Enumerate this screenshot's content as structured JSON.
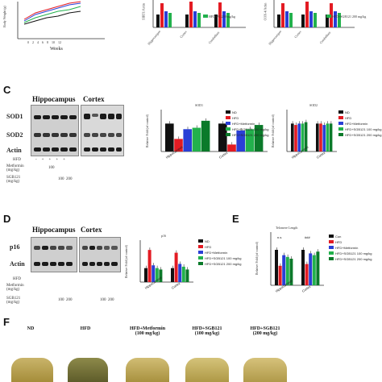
{
  "panel_letters": {
    "c": "C",
    "d": "D",
    "e": "E",
    "f": "F"
  },
  "top": {
    "weeks_label": "Weeks",
    "weeks_ticks": [
      "0",
      "2",
      "4",
      "6",
      "8",
      "10",
      "12"
    ],
    "yaxis_a": "Body Weight (g)",
    "yaxis_b": "SIRT1/Actin",
    "yaxis_c": "COX-4/Actin",
    "regions": [
      "Hippocampus",
      "Cortex",
      "Cerebellum"
    ],
    "legend_b": [
      "HFD+PL 200 mg/kg"
    ],
    "legend_c": [
      "HFD+SGB121 200 mg/kg"
    ]
  },
  "c": {
    "blot_headers": [
      "Hippocampus",
      "Cortex"
    ],
    "proteins": [
      "SOD1",
      "SOD2",
      "Actin"
    ],
    "row_labels": [
      "HFD",
      "Metformin\n(mg/kg)",
      "SGB121\n(mg/kg)"
    ],
    "hfd_vals": [
      "-",
      "+",
      "+",
      "+",
      "+"
    ],
    "metformin_vals": [
      "100"
    ],
    "sgb_vals": [
      "100",
      "200"
    ],
    "chart1_title": "SOD1",
    "chart2_title": "SOD2",
    "ylabel": "Relative Fold (of control)",
    "legend": [
      "ND",
      "HFD",
      "HFD+Metformin",
      "HFD+SGB121 100 mg/kg",
      "HFD+SGB121 200 mg/kg"
    ]
  },
  "d": {
    "blot_headers": [
      "Hippocampus",
      "Cortex"
    ],
    "proteins": [
      "p16",
      "Actin"
    ],
    "row_labels": [
      "HFD",
      "Metformin\n(mg/kg)",
      "SGB121\n(mg/kg)"
    ],
    "sgb_vals": [
      "100",
      "200",
      "100",
      "200"
    ],
    "chart_title": "p16",
    "ylabel": "Relative Fold (of control)",
    "legend": [
      "ND",
      "HFD",
      "HFD+Metformin",
      "HFD+SGB121 100 mg/kg",
      "HFD+SGB121 200 mg/kg"
    ]
  },
  "e": {
    "chart_title": "Telomere Length",
    "ylabel": "Relative Fold (of control)",
    "legend": [
      "Con",
      "HFD",
      "HFD+Metformin",
      "HFD+SGB121 100 mg/kg",
      "HFD+SGB121 200 mg/kg"
    ],
    "sig": [
      "n.s",
      "###"
    ]
  },
  "f": {
    "groups": [
      "ND",
      "HFD",
      "HFD+Metformin\n(100 mg/kg)",
      "HFD+SGB121\n(100 mg/kg)",
      "HFD+SGB121\n(200 mg/kg)"
    ]
  },
  "colors": {
    "nd": "#111111",
    "hfd": "#e31b23",
    "metformin": "#2a3fd6",
    "sgb100": "#22b14c",
    "sgb200": "#0b7a2a"
  },
  "chart_data": [
    {
      "type": "bar",
      "title": "SOD1",
      "categories": [
        "Hippocampus",
        "Cortex"
      ],
      "series": [
        {
          "name": "ND",
          "values": [
            1.0,
            1.0
          ]
        },
        {
          "name": "HFD",
          "values": [
            0.45,
            0.25
          ]
        },
        {
          "name": "HFD+Metformin",
          "values": [
            0.8,
            0.75
          ]
        },
        {
          "name": "HFD+SGB121 100 mg/kg",
          "values": [
            0.85,
            0.8
          ]
        },
        {
          "name": "HFD+SGB121 200 mg/kg",
          "values": [
            1.1,
            0.95
          ]
        }
      ],
      "ylim": [
        0,
        1.5
      ]
    },
    {
      "type": "bar",
      "title": "SOD2",
      "categories": [
        "Hippocampus",
        "Cortex"
      ],
      "series": [
        {
          "name": "ND",
          "values": [
            1.0,
            1.0
          ]
        },
        {
          "name": "HFD",
          "values": [
            0.95,
            1.0
          ]
        },
        {
          "name": "HFD+Metformin",
          "values": [
            1.0,
            0.95
          ]
        },
        {
          "name": "HFD+SGB121 100 mg/kg",
          "values": [
            1.0,
            1.0
          ]
        },
        {
          "name": "HFD+SGB121 200 mg/kg",
          "values": [
            1.05,
            1.0
          ]
        }
      ],
      "ylim": [
        0,
        1.5
      ]
    },
    {
      "type": "bar",
      "title": "p16",
      "categories": [
        "Hippocampus",
        "Cortex"
      ],
      "series": [
        {
          "name": "ND",
          "values": [
            1.0,
            1.0
          ]
        },
        {
          "name": "HFD",
          "values": [
            2.3,
            2.1
          ]
        },
        {
          "name": "HFD+Metformin",
          "values": [
            1.2,
            1.3
          ]
        },
        {
          "name": "HFD+SGB121 100 mg/kg",
          "values": [
            1.0,
            1.1
          ]
        },
        {
          "name": "HFD+SGB121 200 mg/kg",
          "values": [
            0.9,
            0.9
          ]
        }
      ],
      "ylim": [
        0,
        3
      ]
    },
    {
      "type": "bar",
      "title": "Telomere Length",
      "categories": [
        "Hippocampus",
        "Cortex"
      ],
      "series": [
        {
          "name": "Con",
          "values": [
            1.0,
            1.0
          ]
        },
        {
          "name": "HFD",
          "values": [
            0.55,
            0.6
          ]
        },
        {
          "name": "HFD+Metformin",
          "values": [
            0.85,
            0.9
          ]
        },
        {
          "name": "HFD+SGB121 100 mg/kg",
          "values": [
            0.8,
            0.85
          ]
        },
        {
          "name": "HFD+SGB121 200 mg/kg",
          "values": [
            0.75,
            0.95
          ]
        }
      ],
      "ylim": [
        0,
        1.5
      ]
    }
  ]
}
